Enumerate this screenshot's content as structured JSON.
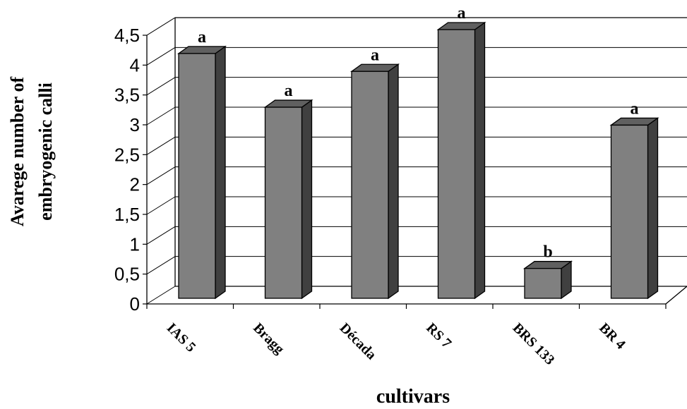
{
  "chart_data": {
    "type": "bar",
    "categories": [
      "IAS 5",
      "Bragg",
      "Década",
      "RS 7",
      "BRS 133",
      "BR 4"
    ],
    "values": [
      4.1,
      3.2,
      3.8,
      4.5,
      0.5,
      2.9
    ],
    "letters": [
      "a",
      "a",
      "a",
      "a",
      "b",
      "a"
    ],
    "xlabel": "cultivars",
    "ylabel": [
      "Avarege number of",
      "embryogenic calli"
    ],
    "ylim": [
      0,
      4.5
    ],
    "yticks": [
      "0",
      "0,5",
      "1",
      "1,5",
      "2",
      "2,5",
      "3",
      "3,5",
      "4",
      "4,5"
    ],
    "grid": true,
    "colors": {
      "bar_front": "#808080",
      "bar_side": "#404040",
      "bar_top": "#606060",
      "grid": "#000000"
    }
  }
}
